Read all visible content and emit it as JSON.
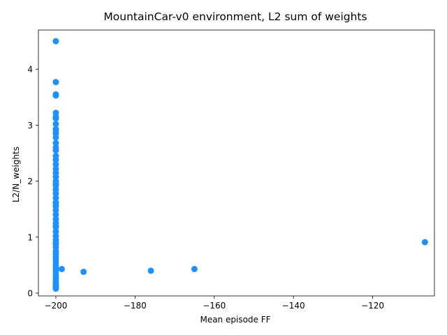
{
  "chart_data": {
    "type": "scatter",
    "title": "MountainCar-v0 environment, L2 sum of weights",
    "xlabel": "Mean episode FF",
    "ylabel": "L2/N_weights",
    "xlim": [
      -204.4,
      -104.4
    ],
    "ylim": [
      -0.05,
      4.7
    ],
    "x_ticks": [
      -200,
      -180,
      -160,
      -140,
      -120
    ],
    "y_ticks": [
      0,
      1,
      2,
      3,
      4
    ],
    "x_tick_labels": [
      "−200",
      "−180",
      "−160",
      "−140",
      "−120"
    ],
    "y_tick_labels": [
      "0",
      "1",
      "2",
      "3",
      "4"
    ],
    "grid": false,
    "marker_color": "#1e90ff",
    "series": [
      {
        "x": [
          -200,
          -200,
          -200,
          -200,
          -200,
          -200,
          -200,
          -200,
          -200,
          -200,
          -200,
          -200,
          -200,
          -200,
          -200,
          -200,
          -200,
          -200,
          -200,
          -200,
          -200,
          -200,
          -200,
          -200,
          -200,
          -200,
          -200,
          -200,
          -200,
          -200,
          -200,
          -200,
          -200,
          -200,
          -200,
          -200,
          -200,
          -200,
          -200,
          -200,
          -200,
          -200,
          -200,
          -200,
          -200,
          -200,
          -200,
          -200,
          -200,
          -200,
          -200,
          -200,
          -200,
          -200,
          -200,
          -200,
          -200,
          -200,
          -200,
          -200,
          -198.5,
          -193,
          -176,
          -165,
          -106.8
        ],
        "y": [
          4.5,
          3.77,
          3.55,
          3.53,
          3.22,
          3.15,
          3.12,
          3.02,
          2.93,
          2.9,
          2.85,
          2.78,
          2.68,
          2.6,
          2.55,
          2.45,
          2.38,
          2.3,
          2.22,
          2.15,
          2.08,
          2.0,
          1.92,
          1.85,
          1.78,
          1.7,
          1.62,
          1.55,
          1.48,
          1.4,
          1.32,
          1.25,
          1.18,
          1.1,
          1.02,
          0.95,
          0.88,
          0.82,
          0.75,
          0.7,
          0.65,
          0.6,
          0.55,
          0.5,
          0.45,
          0.4,
          0.35,
          0.3,
          0.26,
          0.22,
          0.18,
          0.15,
          0.12,
          0.1,
          0.08,
          1.95,
          1.6,
          1.2,
          0.9,
          0.65,
          0.43,
          0.38,
          0.4,
          0.43,
          0.91
        ]
      }
    ]
  }
}
